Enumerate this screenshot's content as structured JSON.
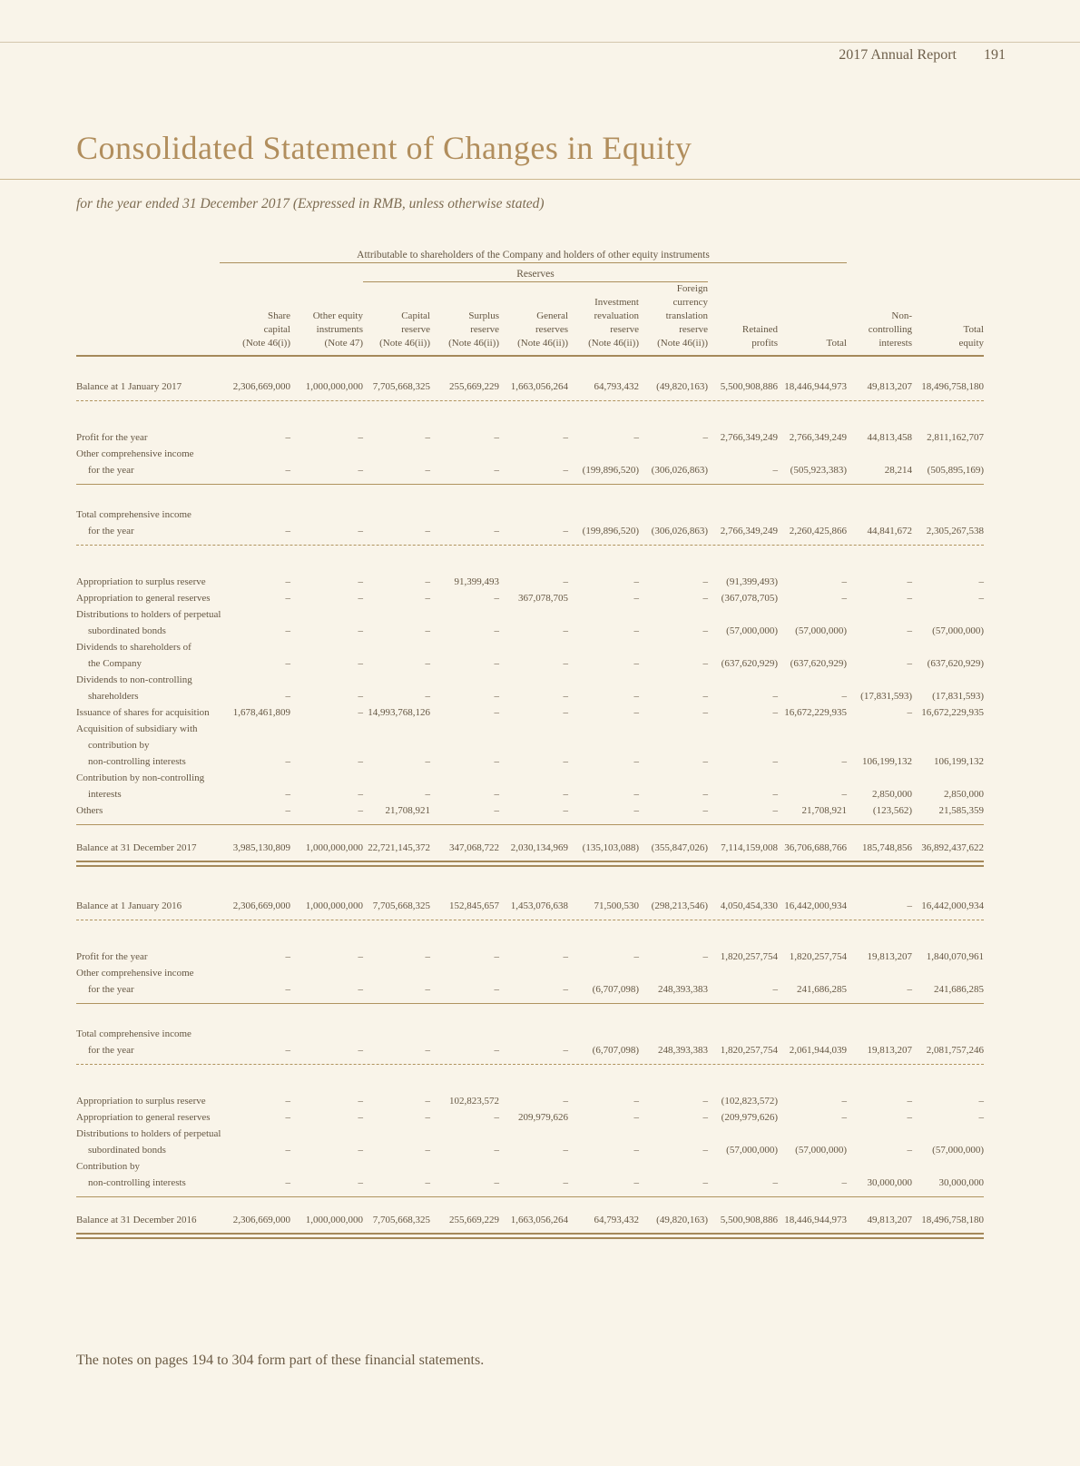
{
  "page": {
    "header_right": "2017 Annual Report",
    "page_number": "191",
    "title": "Consolidated Statement of Changes in Equity",
    "subtitle": "for the year ended 31 December 2017 (Expressed in RMB, unless otherwise stated)",
    "footnote": "The notes on pages 194 to 304 form part of these financial statements."
  },
  "table": {
    "span_header_1": "Attributable to shareholders of the Company and holders of other equity instruments",
    "span_header_2": "Reserves",
    "columns": [
      {
        "lines": [
          "Share",
          "capital",
          "(Note 46(i))"
        ]
      },
      {
        "lines": [
          "Other equity",
          "instruments",
          "(Note 47)"
        ]
      },
      {
        "lines": [
          "Capital",
          "reserve",
          "(Note 46(ii))"
        ]
      },
      {
        "lines": [
          "Surplus",
          "reserve",
          "(Note 46(ii))"
        ]
      },
      {
        "lines": [
          "General",
          "reserves",
          "(Note 46(ii))"
        ]
      },
      {
        "lines": [
          "Investment",
          "revaluation",
          "reserve",
          "(Note 46(ii))"
        ]
      },
      {
        "lines": [
          "Foreign",
          "currency",
          "translation",
          "reserve",
          "(Note 46(ii))"
        ]
      },
      {
        "lines": [
          "Retained",
          "profits"
        ]
      },
      {
        "lines": [
          "Total"
        ]
      },
      {
        "lines": [
          "Non-",
          "controlling",
          "interests"
        ]
      },
      {
        "lines": [
          "Total",
          "equity"
        ]
      }
    ],
    "rows": [
      {
        "label": [
          "Balance at 1 January 2017"
        ],
        "values": [
          "2,306,669,000",
          "1,000,000,000",
          "7,705,668,325",
          "255,669,229",
          "1,663,056,264",
          "64,793,432",
          "(49,820,163)",
          "5,500,908,886",
          "18,446,944,973",
          "49,813,207",
          "18,496,758,180"
        ],
        "gap_before": "lg",
        "rule_after": "dashed"
      },
      {
        "label": [
          "Profit for the year"
        ],
        "values": [
          "–",
          "–",
          "–",
          "–",
          "–",
          "–",
          "–",
          "2,766,349,249",
          "2,766,349,249",
          "44,813,458",
          "2,811,162,707"
        ],
        "gap_before": "lg"
      },
      {
        "label": [
          "Other comprehensive income",
          "for the year"
        ],
        "values": [
          "–",
          "–",
          "–",
          "–",
          "–",
          "(199,896,520)",
          "(306,026,863)",
          "–",
          "(505,923,383)",
          "28,214",
          "(505,895,169)"
        ],
        "rule_after": "solid"
      },
      {
        "label": [
          "Total comprehensive income",
          "for the year"
        ],
        "values": [
          "–",
          "–",
          "–",
          "–",
          "–",
          "(199,896,520)",
          "(306,026,863)",
          "2,766,349,249",
          "2,260,425,866",
          "44,841,672",
          "2,305,267,538"
        ],
        "gap_before": "lg",
        "rule_after": "dashed"
      },
      {
        "label": [
          "Appropriation to surplus reserve"
        ],
        "values": [
          "–",
          "–",
          "–",
          "91,399,493",
          "–",
          "–",
          "–",
          "(91,399,493)",
          "–",
          "–",
          "–"
        ],
        "gap_before": "lg"
      },
      {
        "label": [
          "Appropriation to general reserves"
        ],
        "values": [
          "–",
          "–",
          "–",
          "–",
          "367,078,705",
          "–",
          "–",
          "(367,078,705)",
          "–",
          "–",
          "–"
        ]
      },
      {
        "label": [
          "Distributions to holders of perpetual",
          "subordinated bonds"
        ],
        "values": [
          "–",
          "–",
          "–",
          "–",
          "–",
          "–",
          "–",
          "(57,000,000)",
          "(57,000,000)",
          "–",
          "(57,000,000)"
        ]
      },
      {
        "label": [
          "Dividends to shareholders of",
          "the Company"
        ],
        "values": [
          "–",
          "–",
          "–",
          "–",
          "–",
          "–",
          "–",
          "(637,620,929)",
          "(637,620,929)",
          "–",
          "(637,620,929)"
        ]
      },
      {
        "label": [
          "Dividends to non-controlling",
          "shareholders"
        ],
        "values": [
          "–",
          "–",
          "–",
          "–",
          "–",
          "–",
          "–",
          "–",
          "–",
          "(17,831,593)",
          "(17,831,593)"
        ]
      },
      {
        "label": [
          "Issuance of shares for acquisition"
        ],
        "values": [
          "1,678,461,809",
          "–",
          "14,993,768,126",
          "–",
          "–",
          "–",
          "–",
          "–",
          "16,672,229,935",
          "–",
          "16,672,229,935"
        ]
      },
      {
        "label": [
          "Acquisition of subsidiary with",
          "contribution by",
          "non-controlling interests"
        ],
        "values": [
          "–",
          "–",
          "–",
          "–",
          "–",
          "–",
          "–",
          "–",
          "–",
          "106,199,132",
          "106,199,132"
        ]
      },
      {
        "label": [
          "Contribution by non-controlling",
          "interests"
        ],
        "values": [
          "–",
          "–",
          "–",
          "–",
          "–",
          "–",
          "–",
          "–",
          "–",
          "2,850,000",
          "2,850,000"
        ]
      },
      {
        "label": [
          "Others"
        ],
        "values": [
          "–",
          "–",
          "21,708,921",
          "–",
          "–",
          "–",
          "–",
          "–",
          "21,708,921",
          "(123,562)",
          "21,585,359"
        ],
        "rule_after": "solid"
      },
      {
        "label": [
          "Balance at 31 December 2017"
        ],
        "values": [
          "3,985,130,809",
          "1,000,000,000",
          "22,721,145,372",
          "347,068,722",
          "2,030,134,969",
          "(135,103,088)",
          "(355,847,026)",
          "7,114,159,008",
          "36,706,688,766",
          "185,748,856",
          "36,892,437,622"
        ],
        "gap_before": "md",
        "rule_after": "double"
      },
      {
        "label": [
          "Balance at 1 January 2016"
        ],
        "values": [
          "2,306,669,000",
          "1,000,000,000",
          "7,705,668,325",
          "152,845,657",
          "1,453,076,638",
          "71,500,530",
          "(298,213,546)",
          "4,050,454,330",
          "16,442,000,934",
          "–",
          "16,442,000,934"
        ],
        "gap_before": "xl",
        "rule_after": "dashed"
      },
      {
        "label": [
          "Profit for the year"
        ],
        "values": [
          "–",
          "–",
          "–",
          "–",
          "–",
          "–",
          "–",
          "1,820,257,754",
          "1,820,257,754",
          "19,813,207",
          "1,840,070,961"
        ],
        "gap_before": "lg"
      },
      {
        "label": [
          "Other comprehensive income",
          "for the year"
        ],
        "values": [
          "–",
          "–",
          "–",
          "–",
          "–",
          "(6,707,098)",
          "248,393,383",
          "–",
          "241,686,285",
          "–",
          "241,686,285"
        ],
        "rule_after": "solid"
      },
      {
        "label": [
          "Total comprehensive income",
          "for the year"
        ],
        "values": [
          "–",
          "–",
          "–",
          "–",
          "–",
          "(6,707,098)",
          "248,393,383",
          "1,820,257,754",
          "2,061,944,039",
          "19,813,207",
          "2,081,757,246"
        ],
        "gap_before": "lg",
        "rule_after": "dashed"
      },
      {
        "label": [
          "Appropriation to surplus reserve"
        ],
        "values": [
          "–",
          "–",
          "–",
          "102,823,572",
          "–",
          "–",
          "–",
          "(102,823,572)",
          "–",
          "–",
          "–"
        ],
        "gap_before": "lg"
      },
      {
        "label": [
          "Appropriation to general reserves"
        ],
        "values": [
          "–",
          "–",
          "–",
          "–",
          "209,979,626",
          "–",
          "–",
          "(209,979,626)",
          "–",
          "–",
          "–"
        ]
      },
      {
        "label": [
          "Distributions to holders of perpetual",
          "subordinated bonds"
        ],
        "values": [
          "–",
          "–",
          "–",
          "–",
          "–",
          "–",
          "–",
          "(57,000,000)",
          "(57,000,000)",
          "–",
          "(57,000,000)"
        ]
      },
      {
        "label": [
          "Contribution by",
          "non-controlling interests"
        ],
        "values": [
          "–",
          "–",
          "–",
          "–",
          "–",
          "–",
          "–",
          "–",
          "–",
          "30,000,000",
          "30,000,000"
        ],
        "rule_after": "solid"
      },
      {
        "label": [
          "Balance at 31 December 2016"
        ],
        "values": [
          "2,306,669,000",
          "1,000,000,000",
          "7,705,668,325",
          "255,669,229",
          "1,663,056,264",
          "64,793,432",
          "(49,820,163)",
          "5,500,908,886",
          "18,446,944,973",
          "49,813,207",
          "18,496,758,180"
        ],
        "gap_before": "md",
        "rule_after": "double"
      }
    ]
  }
}
